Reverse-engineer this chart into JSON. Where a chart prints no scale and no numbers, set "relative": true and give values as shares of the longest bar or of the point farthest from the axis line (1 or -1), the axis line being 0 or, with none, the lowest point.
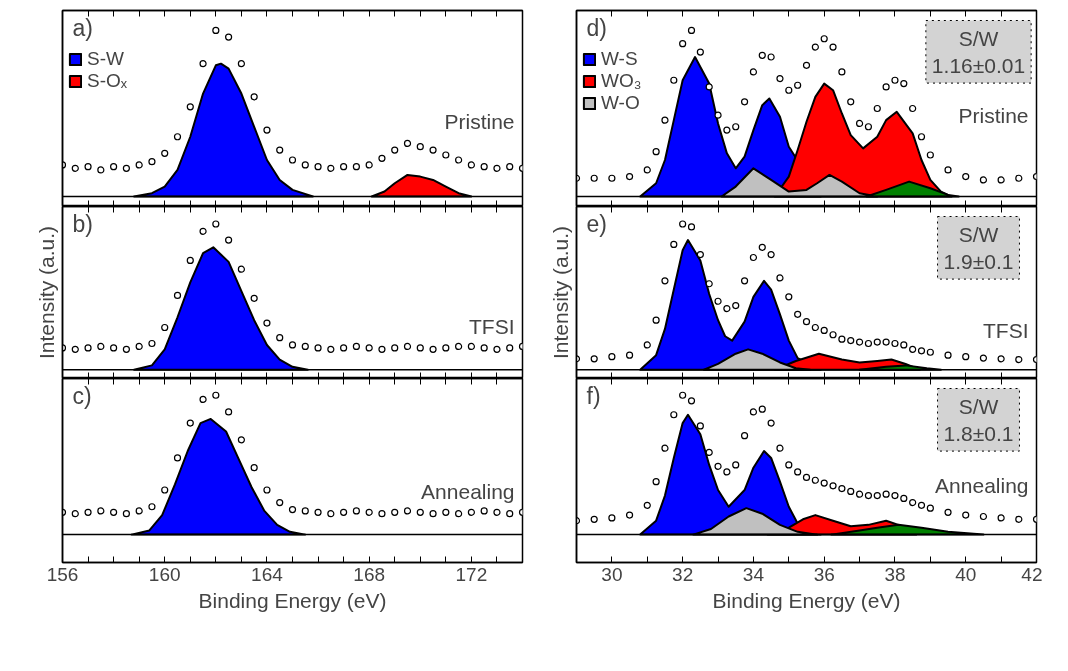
{
  "chart_data": [
    {
      "type": "area",
      "relative": true,
      "legend": "top left",
      "tick_labels": false,
      "xlim": [
        156,
        174
      ],
      "xticks": [
        156,
        {
          "value": 157,
          "label": null
        },
        {
          "value": 158,
          "label": null
        },
        {
          "value": 159,
          "label": null
        },
        160,
        {
          "value": 161,
          "label": null
        },
        {
          "value": 162,
          "label": null
        },
        {
          "value": 163,
          "label": null
        },
        164,
        {
          "value": 165,
          "label": null
        },
        {
          "value": 166,
          "label": null
        },
        {
          "value": 167,
          "label": null
        },
        168,
        {
          "value": 169,
          "label": null
        },
        {
          "value": 170,
          "label": null
        },
        {
          "value": 171,
          "label": null
        },
        172,
        {
          "value": 173,
          "label": null
        }
      ],
      "x": [
        156,
        156.5,
        157,
        157.5,
        158,
        158.5,
        159,
        159.5,
        160,
        160.5,
        161,
        161.5,
        162,
        162.5,
        163,
        163.5,
        164,
        164.5,
        165,
        165.5,
        166,
        166.5,
        167,
        167.5,
        168,
        168.5,
        169,
        169.5,
        170,
        170.5,
        171,
        171.5,
        172,
        172.5,
        173,
        173.5,
        174
      ],
      "series": [
        {
          "type": "scatter",
          "marker": "circle",
          "color": "#000000",
          "values": [
            0.19,
            0.17,
            0.18,
            0.16,
            0.18,
            0.17,
            0.19,
            0.21,
            0.26,
            0.36,
            0.54,
            0.8,
            1.0,
            0.96,
            0.8,
            0.6,
            0.4,
            0.28,
            0.22,
            0.19,
            0.18,
            0.17,
            0.18,
            0.18,
            0.19,
            0.23,
            0.28,
            0.32,
            0.3,
            0.28,
            0.25,
            0.22,
            0.19,
            0.18,
            0.17,
            0.18,
            0.17
          ]
        },
        {
          "name": "S-W",
          "color": "#0000ff",
          "x": [
            158.8,
            159.5,
            160,
            160.5,
            161,
            161.5,
            162,
            162.2,
            162.5,
            163,
            163.5,
            164,
            164.5,
            165,
            165.8
          ],
          "values": [
            0,
            0.02,
            0.06,
            0.16,
            0.36,
            0.62,
            0.79,
            0.8,
            0.77,
            0.62,
            0.42,
            0.22,
            0.1,
            0.04,
            0
          ]
        },
        {
          "name": "S-Oₓ",
          "color": "#ff0000",
          "x": [
            168.1,
            168.6,
            169,
            169.5,
            170,
            170.5,
            171,
            171.5,
            172
          ],
          "values": [
            0,
            0.03,
            0.08,
            0.13,
            0.12,
            0.1,
            0.06,
            0.02,
            0
          ]
        }
      ],
      "annotations": [
        "a)",
        "Pristine"
      ]
    },
    {
      "type": "area",
      "relative": true,
      "legend": "top left",
      "tick_labels": false,
      "xlim": [
        29,
        42
      ],
      "xticks": [
        {
          "value": 29,
          "label": null
        },
        30,
        {
          "value": 31,
          "label": null
        },
        32,
        {
          "value": 33,
          "label": null
        },
        34,
        {
          "value": 35,
          "label": null
        },
        36,
        {
          "value": 37,
          "label": null
        },
        38,
        {
          "value": 39,
          "label": null
        },
        40,
        {
          "value": 41,
          "label": null
        },
        42
      ],
      "x": [
        29,
        29.5,
        30,
        30.5,
        31,
        31.25,
        31.5,
        31.75,
        32,
        32.25,
        32.5,
        32.75,
        33,
        33.25,
        33.5,
        33.75,
        34,
        34.25,
        34.5,
        34.75,
        35,
        35.25,
        35.5,
        35.75,
        36,
        36.25,
        36.5,
        36.75,
        37,
        37.25,
        37.5,
        37.75,
        38,
        38.25,
        38.5,
        38.75,
        39,
        39.5,
        40,
        40.5,
        41,
        41.5,
        42
      ],
      "series": [
        {
          "type": "scatter",
          "marker": "circle",
          "color": "#000000",
          "values": [
            0.11,
            0.11,
            0.11,
            0.12,
            0.16,
            0.27,
            0.46,
            0.7,
            0.92,
            1.0,
            0.87,
            0.66,
            0.49,
            0.4,
            0.42,
            0.57,
            0.75,
            0.85,
            0.84,
            0.71,
            0.64,
            0.67,
            0.79,
            0.9,
            0.95,
            0.9,
            0.75,
            0.57,
            0.44,
            0.42,
            0.53,
            0.66,
            0.7,
            0.68,
            0.53,
            0.36,
            0.25,
            0.16,
            0.12,
            0.1,
            0.1,
            0.11,
            0.12
          ]
        },
        {
          "name": "W-S",
          "color": "#0000ff",
          "x": [
            30.8,
            31.25,
            31.5,
            31.75,
            32,
            32.35,
            32.75,
            33,
            33.25,
            33.5,
            33.75,
            34,
            34.25,
            34.45,
            34.75,
            35,
            35.25,
            35.5,
            35.9
          ],
          "values": [
            0,
            0.08,
            0.22,
            0.46,
            0.7,
            0.84,
            0.68,
            0.44,
            0.26,
            0.17,
            0.24,
            0.4,
            0.55,
            0.59,
            0.48,
            0.3,
            null,
            null,
            0
          ]
        },
        {
          "name": "WO₃",
          "color": "#ff0000",
          "x": [
            34.6,
            35,
            35.25,
            35.5,
            35.75,
            36,
            36.25,
            36.5,
            36.75,
            37.1,
            37.5,
            37.75,
            38.05,
            38.5,
            38.75,
            39,
            39.3,
            39.6
          ],
          "values": [
            0,
            0.12,
            0.28,
            0.45,
            0.6,
            0.68,
            0.64,
            0.5,
            0.37,
            0.29,
            0.36,
            0.46,
            0.51,
            0.38,
            0.22,
            0.1,
            0.03,
            0
          ]
        },
        {
          "name": "W-O",
          "color": "#c0c0c0",
          "x": [
            33.1,
            33.5,
            34,
            34.5,
            35,
            35.5,
            35.8,
            36.15,
            36.5,
            37,
            37.5
          ],
          "values": [
            0,
            0.06,
            0.17,
            0.1,
            0.03,
            0.04,
            0.08,
            0.13,
            0.09,
            0.02,
            0
          ]
        },
        {
          "color": "#008000",
          "x": [
            37.2,
            37.75,
            38.4,
            39,
            39.5,
            39.8
          ],
          "values": [
            0,
            0.04,
            0.09,
            0.05,
            0.01,
            0
          ]
        }
      ],
      "annotations": [
        "d)",
        "Pristine",
        "S/W\n1.16±0.01"
      ]
    },
    {
      "type": "area",
      "relative": true,
      "tick_labels": false,
      "ylabel": "Intensity (a.u.)",
      "xlim": [
        156,
        174
      ],
      "xticks": [
        156,
        {
          "value": 157,
          "label": null
        },
        {
          "value": 158,
          "label": null
        },
        {
          "value": 159,
          "label": null
        },
        160,
        {
          "value": 161,
          "label": null
        },
        {
          "value": 162,
          "label": null
        },
        {
          "value": 163,
          "label": null
        },
        164,
        {
          "value": 165,
          "label": null
        },
        {
          "value": 166,
          "label": null
        },
        {
          "value": 167,
          "label": null
        },
        168,
        {
          "value": 169,
          "label": null
        },
        {
          "value": 170,
          "label": null
        },
        {
          "value": 171,
          "label": null
        },
        172,
        {
          "value": 173,
          "label": null
        }
      ],
      "x": [
        156,
        156.5,
        157,
        157.5,
        158,
        158.5,
        159,
        159.5,
        160,
        160.5,
        161,
        161.5,
        162,
        162.5,
        163,
        163.5,
        164,
        164.5,
        165,
        165.5,
        166,
        166.5,
        167,
        167.5,
        168,
        168.5,
        169,
        169.5,
        170,
        170.5,
        171,
        171.5,
        172,
        172.5,
        173,
        173.5,
        174
      ],
      "series": [
        {
          "type": "scatter",
          "marker": "circle",
          "color": "#000000",
          "values": [
            0.15,
            0.14,
            0.15,
            0.16,
            0.15,
            0.14,
            0.16,
            0.18,
            0.29,
            0.51,
            0.75,
            0.95,
            1.0,
            0.89,
            0.69,
            0.49,
            0.32,
            0.22,
            0.17,
            0.16,
            0.15,
            0.14,
            0.15,
            0.16,
            0.15,
            0.14,
            0.15,
            0.16,
            0.15,
            0.14,
            0.15,
            0.16,
            0.16,
            0.15,
            0.14,
            0.15,
            0.16
          ]
        },
        {
          "color": "#0000ff",
          "x": [
            158.8,
            159.5,
            160,
            160.5,
            161,
            161.5,
            161.9,
            162.5,
            163,
            163.5,
            164,
            164.5,
            165,
            165.6
          ],
          "values": [
            0,
            0.03,
            0.14,
            0.36,
            0.6,
            0.8,
            0.84,
            0.74,
            0.54,
            0.34,
            0.17,
            0.07,
            0.02,
            0
          ]
        }
      ],
      "annotations": [
        "b)",
        "TFSI"
      ]
    },
    {
      "type": "area",
      "relative": true,
      "tick_labels": false,
      "ylabel": "Intensity (a.u.)",
      "xlim": [
        29,
        42
      ],
      "xticks": [
        {
          "value": 29,
          "label": null
        },
        30,
        {
          "value": 31,
          "label": null
        },
        32,
        {
          "value": 33,
          "label": null
        },
        34,
        {
          "value": 35,
          "label": null
        },
        36,
        {
          "value": 37,
          "label": null
        },
        38,
        {
          "value": 39,
          "label": null
        },
        40,
        {
          "value": 41,
          "label": null
        },
        42
      ],
      "x": [
        29,
        29.5,
        30,
        30.5,
        31,
        31.25,
        31.5,
        31.75,
        32,
        32.25,
        32.5,
        32.75,
        33,
        33.25,
        33.5,
        33.75,
        34,
        34.25,
        34.5,
        34.75,
        35,
        35.25,
        35.5,
        35.75,
        36,
        36.25,
        36.5,
        36.75,
        37,
        37.25,
        37.5,
        37.75,
        38,
        38.25,
        38.5,
        38.75,
        39,
        39.5,
        40,
        40.5,
        41,
        41.5,
        42
      ],
      "series": [
        {
          "type": "scatter",
          "marker": "circle",
          "color": "#000000",
          "values": [
            0.075,
            0.075,
            0.09,
            0.1,
            0.17,
            0.34,
            0.61,
            0.86,
            1.0,
            0.98,
            0.79,
            0.59,
            0.47,
            0.42,
            0.44,
            0.61,
            0.77,
            0.84,
            0.79,
            0.63,
            0.5,
            0.38,
            0.33,
            0.29,
            0.27,
            0.24,
            0.21,
            0.2,
            0.19,
            0.18,
            0.19,
            0.19,
            0.18,
            0.17,
            0.14,
            0.13,
            0.12,
            0.1,
            0.09,
            0.08,
            0.075,
            0.07,
            0.07
          ]
        },
        {
          "color": "#0000ff",
          "x": [
            30.8,
            31.25,
            31.5,
            31.75,
            32,
            32.15,
            32.5,
            32.75,
            33,
            33.2,
            33.4,
            33.75,
            34,
            34.3,
            34.5,
            34.75,
            35,
            35.25,
            35.6,
            35.9
          ],
          "values": [
            0,
            0.1,
            0.28,
            0.55,
            0.82,
            0.89,
            0.75,
            0.52,
            0.34,
            0.23,
            0.2,
            0.33,
            0.5,
            0.61,
            0.55,
            0.38,
            0.2,
            0.08,
            null,
            0
          ]
        },
        {
          "color": "#ff0000",
          "x": [
            34.6,
            35.2,
            35.85,
            36.5,
            37,
            37.5,
            37.9,
            38.3,
            38.7
          ],
          "values": [
            0,
            0.06,
            0.11,
            0.07,
            0.05,
            0.06,
            0.07,
            0.04,
            0
          ]
        },
        {
          "color": "#c0c0c0",
          "x": [
            32.6,
            33,
            33.5,
            33.85,
            34.25,
            34.75,
            35.2,
            35.6
          ],
          "values": [
            0,
            0.04,
            0.11,
            0.14,
            0.11,
            0.05,
            0.01,
            0
          ]
        },
        {
          "color": "#008000",
          "x": [
            37,
            37.75,
            38.3,
            38.9,
            39.3
          ],
          "values": [
            0,
            0.02,
            0.03,
            0.01,
            0
          ]
        }
      ],
      "annotations": [
        "e)",
        "TFSI",
        "S/W\n1.9±0.1"
      ]
    },
    {
      "type": "area",
      "relative": true,
      "tick_labels": "x",
      "xlabel": "Binding Energy (eV)",
      "xlim": [
        156,
        174
      ],
      "xticks": [
        156,
        {
          "value": 157,
          "label": null
        },
        {
          "value": 158,
          "label": null
        },
        {
          "value": 159,
          "label": null
        },
        160,
        {
          "value": 161,
          "label": null
        },
        {
          "value": 162,
          "label": null
        },
        {
          "value": 163,
          "label": null
        },
        164,
        {
          "value": 165,
          "label": null
        },
        {
          "value": 166,
          "label": null
        },
        {
          "value": 167,
          "label": null
        },
        168,
        {
          "value": 169,
          "label": null
        },
        {
          "value": 170,
          "label": null
        },
        {
          "value": 171,
          "label": null
        },
        172,
        {
          "value": 173,
          "label": null
        }
      ],
      "x": [
        156,
        156.5,
        157,
        157.5,
        158,
        158.5,
        159,
        159.5,
        160,
        160.5,
        161,
        161.5,
        162,
        162.5,
        163,
        163.5,
        164,
        164.5,
        165,
        165.5,
        166,
        166.5,
        167,
        167.5,
        168,
        168.5,
        169,
        169.5,
        170,
        170.5,
        171,
        171.5,
        172,
        172.5,
        173,
        173.5,
        174
      ],
      "series": [
        {
          "type": "scatter",
          "marker": "circle",
          "color": "#000000",
          "values": [
            0.16,
            0.15,
            0.16,
            0.17,
            0.16,
            0.15,
            0.17,
            0.2,
            0.32,
            0.55,
            0.8,
            0.97,
            1.0,
            0.88,
            0.68,
            0.48,
            0.32,
            0.23,
            0.18,
            0.17,
            0.16,
            0.15,
            0.16,
            0.17,
            0.16,
            0.15,
            0.16,
            0.17,
            0.16,
            0.15,
            0.16,
            0.15,
            0.16,
            0.17,
            0.16,
            0.15,
            0.16
          ]
        },
        {
          "color": "#0000ff",
          "x": [
            158.7,
            159.4,
            159.9,
            160.4,
            160.9,
            161.4,
            161.8,
            162.4,
            162.9,
            163.4,
            163.9,
            164.4,
            164.9,
            165.5
          ],
          "values": [
            0,
            0.03,
            0.14,
            0.36,
            0.6,
            0.8,
            0.83,
            0.74,
            0.54,
            0.34,
            0.17,
            0.07,
            0.02,
            0
          ]
        }
      ],
      "annotations": [
        "c)",
        "Annealing"
      ]
    },
    {
      "type": "area",
      "relative": true,
      "tick_labels": "x",
      "xlabel": "Binding Energy (eV)",
      "xlim": [
        29,
        42
      ],
      "xticks": [
        {
          "value": 29,
          "label": null
        },
        30,
        {
          "value": 31,
          "label": null
        },
        32,
        {
          "value": 33,
          "label": null
        },
        34,
        {
          "value": 35,
          "label": null
        },
        36,
        {
          "value": 37,
          "label": null
        },
        38,
        {
          "value": 39,
          "label": null
        },
        40,
        {
          "value": 41,
          "label": null
        },
        42
      ],
      "x": [
        29,
        29.5,
        30,
        30.5,
        31,
        31.25,
        31.5,
        31.75,
        32,
        32.25,
        32.5,
        32.75,
        33,
        33.25,
        33.5,
        33.75,
        34,
        34.25,
        34.5,
        34.75,
        35,
        35.25,
        35.5,
        35.75,
        36,
        36.25,
        36.5,
        36.75,
        37,
        37.25,
        37.5,
        37.75,
        38,
        38.25,
        38.5,
        38.75,
        39,
        39.5,
        40,
        40.5,
        41,
        41.5,
        42
      ],
      "series": [
        {
          "type": "scatter",
          "marker": "circle",
          "color": "#000000",
          "values": [
            0.1,
            0.11,
            0.12,
            0.14,
            0.21,
            0.38,
            0.62,
            0.86,
            1.0,
            0.96,
            0.78,
            0.59,
            0.49,
            0.45,
            0.5,
            0.71,
            0.88,
            0.9,
            0.8,
            0.62,
            0.5,
            0.45,
            0.41,
            0.39,
            0.37,
            0.35,
            0.33,
            0.31,
            0.29,
            0.28,
            0.28,
            0.29,
            0.28,
            0.26,
            0.23,
            0.21,
            0.19,
            0.16,
            0.14,
            0.13,
            0.12,
            0.11,
            0.11
          ]
        },
        {
          "color": "#0000ff",
          "x": [
            30.8,
            31.25,
            31.5,
            31.75,
            32,
            32.15,
            32.5,
            32.75,
            33,
            33.3,
            33.75,
            34,
            34.3,
            34.5,
            34.75,
            35,
            35.25,
            35.6,
            35.9
          ],
          "values": [
            0,
            0.1,
            0.28,
            0.55,
            0.8,
            0.86,
            0.72,
            0.5,
            0.32,
            0.2,
            0.32,
            0.48,
            0.6,
            0.55,
            0.38,
            0.2,
            0.08,
            null,
            0
          ]
        },
        {
          "color": "#ff0000",
          "x": [
            34.4,
            35,
            35.4,
            35.75,
            36.25,
            36.75,
            37.25,
            37.75,
            38.1,
            38.4,
            38.6
          ],
          "values": [
            0,
            0.05,
            0.11,
            0.14,
            0.1,
            0.06,
            0.07,
            0.1,
            0.07,
            0.02,
            0
          ]
        },
        {
          "color": "#c0c0c0",
          "x": [
            32.3,
            32.8,
            33.3,
            33.8,
            34.25,
            34.75,
            35.25,
            35.8
          ],
          "values": [
            0,
            0.04,
            0.13,
            0.19,
            0.15,
            0.07,
            0.02,
            0
          ]
        },
        {
          "color": "#008000",
          "x": [
            36.2,
            37,
            37.5,
            38.1,
            38.75,
            39.5,
            40.5
          ],
          "values": [
            0,
            0.03,
            0.05,
            0.07,
            0.05,
            0.02,
            0
          ]
        }
      ],
      "annotations": [
        "f)",
        "Annealing",
        "S/W\n1.8±0.1"
      ]
    }
  ]
}
